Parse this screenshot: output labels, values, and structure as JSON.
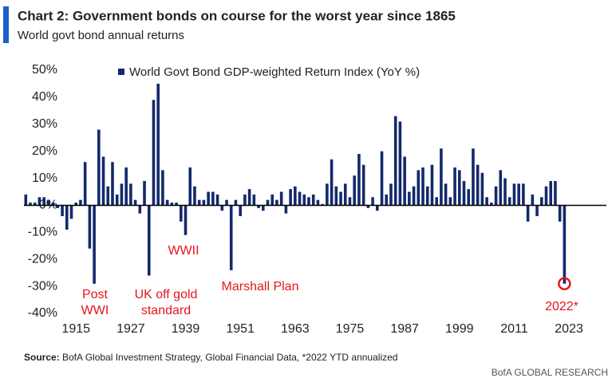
{
  "chart_data": {
    "type": "bar",
    "title": "Chart 2: Government bonds on course for the worst year since 1865",
    "subtitle": "World govt bond annual returns",
    "series": [
      {
        "name": "World Govt Bond GDP-weighted Return Index (YoY %)",
        "color": "#13296b",
        "values": [
          4,
          1,
          1,
          3,
          3,
          2,
          1,
          -1,
          -4,
          -9,
          -5,
          1,
          2,
          16,
          -16,
          -29,
          28,
          18,
          7,
          16,
          4,
          8,
          14,
          8,
          2,
          -3,
          9,
          -26,
          39,
          45,
          13,
          2,
          1,
          1,
          -6,
          -11,
          14,
          7,
          2,
          2,
          5,
          5,
          4,
          -2,
          2,
          -24,
          2,
          -4,
          4,
          6,
          4,
          -1,
          -2,
          2,
          4,
          2,
          5,
          -3,
          6,
          7,
          5,
          4,
          3,
          4,
          2,
          0.5,
          8,
          17,
          7,
          5,
          8,
          3,
          11,
          19,
          15,
          -1,
          3,
          -2,
          20,
          4,
          8,
          33,
          31,
          18,
          5,
          7,
          13,
          14,
          7,
          15,
          3,
          21,
          8,
          3,
          14,
          13,
          9,
          6,
          21,
          15,
          12,
          3,
          1,
          7,
          13,
          10,
          3,
          8,
          8,
          8,
          -6,
          4,
          -4,
          3,
          7,
          9,
          9,
          -6,
          -29
        ]
      }
    ],
    "x": [
      1904,
      1905,
      1906,
      1907,
      1908,
      1909,
      1910,
      1911,
      1912,
      1913,
      1914,
      1915,
      1916,
      1917,
      1918,
      1919,
      1920,
      1921,
      1922,
      1923,
      1924,
      1925,
      1926,
      1927,
      1928,
      1929,
      1930,
      1931,
      1932,
      1933,
      1934,
      1935,
      1936,
      1937,
      1938,
      1939,
      1940,
      1941,
      1942,
      1943,
      1944,
      1945,
      1946,
      1947,
      1948,
      1949,
      1950,
      1951,
      1952,
      1953,
      1954,
      1955,
      1956,
      1957,
      1958,
      1959,
      1960,
      1961,
      1962,
      1963,
      1964,
      1965,
      1966,
      1967,
      1968,
      1969,
      1970,
      1971,
      1972,
      1973,
      1974,
      1975,
      1976,
      1977,
      1978,
      1979,
      1980,
      1981,
      1982,
      1983,
      1984,
      1985,
      1986,
      1987,
      1988,
      1989,
      1990,
      1991,
      1992,
      1993,
      1994,
      1995,
      1996,
      1997,
      1998,
      1999,
      2000,
      2001,
      2002,
      2003,
      2004,
      2005,
      2006,
      2007,
      2008,
      2009,
      2010,
      2011,
      2012,
      2013,
      2014,
      2015,
      2016,
      2017,
      2018,
      2019,
      2020,
      2021,
      2022
    ],
    "xlim": [
      1903.6,
      2031.2
    ],
    "xticks": [
      1915,
      1927,
      1939,
      1951,
      1963,
      1975,
      1987,
      1999,
      2011,
      2023
    ],
    "ylim": [
      -40,
      50
    ],
    "yticks": [
      {
        "value": 50,
        "label": "50%"
      },
      {
        "value": 40,
        "label": "40%"
      },
      {
        "value": 30,
        "label": "30%"
      },
      {
        "value": 20,
        "label": "20%"
      },
      {
        "value": 10,
        "label": "10%"
      },
      {
        "value": 0,
        "label": "0%"
      },
      {
        "value": -10,
        "label": "-10%"
      },
      {
        "value": -20,
        "label": "-20%"
      },
      {
        "value": -30,
        "label": "-30%"
      },
      {
        "value": -40,
        "label": "-40%"
      }
    ],
    "annotations": [
      [
        "Post",
        "WWI"
      ],
      [
        "UK off gold",
        "standard"
      ],
      [
        "WWII"
      ],
      [
        "Marshall Plan"
      ],
      [
        "2022*"
      ]
    ],
    "source_label": "Source:",
    "source": "BofA Global Investment Strategy, Global Financial Data, *2022 YTD annualized",
    "credit": "BofA GLOBAL RESEARCH"
  }
}
